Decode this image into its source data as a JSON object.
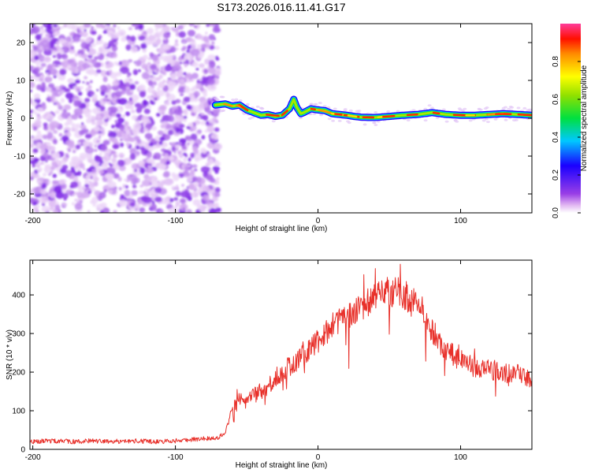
{
  "figure": {
    "title": "S173.2026.016.11.41.G17"
  },
  "chart_data": [
    {
      "type": "heatmap",
      "panel": "top",
      "title": "",
      "xlabel": "Height of straight line (km)",
      "ylabel": "Frequency (Hz)",
      "xlim": [
        -202,
        150
      ],
      "ylim": [
        -25,
        25
      ],
      "xticks": [
        -200,
        -100,
        0,
        100
      ],
      "yticks": [
        -20,
        -10,
        0,
        10,
        20
      ],
      "noise_region_x": [
        -202,
        -70
      ],
      "ridge": {
        "x": [
          -72,
          -65,
          -60,
          -55,
          -50,
          -45,
          -40,
          -35,
          -30,
          -25,
          -20,
          -17,
          -15,
          -12,
          -10,
          -5,
          0,
          5,
          10,
          15,
          20,
          25,
          30,
          35,
          40,
          50,
          60,
          70,
          80,
          90,
          100,
          110,
          120,
          130,
          140,
          150
        ],
        "frequency_hz": [
          3.5,
          3.8,
          3.2,
          3.5,
          2.2,
          1.5,
          0.8,
          1.0,
          0.5,
          0.8,
          2.5,
          5.0,
          3.0,
          1.2,
          1.5,
          2.5,
          2.2,
          2.0,
          1.2,
          1.0,
          0.8,
          0.5,
          0.3,
          0.2,
          0.2,
          0.5,
          0.8,
          1.0,
          1.5,
          1.0,
          0.8,
          0.8,
          1.0,
          1.2,
          1.0,
          0.8
        ]
      },
      "colorbar": {
        "label": "Normalized spectral amplitude",
        "range": [
          0.0,
          1.0
        ],
        "ticks": [
          "0.0",
          "0.2",
          "0.4",
          "0.6",
          "0.8"
        ],
        "tick_values": [
          0.0,
          0.2,
          0.4,
          0.6,
          0.8
        ]
      }
    },
    {
      "type": "line",
      "panel": "bottom",
      "title": "",
      "xlabel": "Height of straight line (km)",
      "ylabel": "SNR (10 * v/v)",
      "xlim": [
        -202,
        150
      ],
      "ylim": [
        0,
        490
      ],
      "xticks": [
        -200,
        -100,
        0,
        100
      ],
      "yticks": [
        0,
        100,
        200,
        300,
        400
      ],
      "color": "#e8302a",
      "series": [
        {
          "name": "SNR",
          "x": [
            -202,
            -190,
            -180,
            -170,
            -160,
            -150,
            -140,
            -130,
            -120,
            -110,
            -100,
            -90,
            -80,
            -70,
            -65,
            -60,
            -55,
            -50,
            -45,
            -40,
            -35,
            -30,
            -25,
            -20,
            -15,
            -10,
            -5,
            0,
            5,
            10,
            15,
            20,
            25,
            30,
            35,
            40,
            45,
            50,
            55,
            60,
            65,
            70,
            75,
            80,
            85,
            90,
            95,
            100,
            105,
            110,
            115,
            120,
            125,
            130,
            135,
            140,
            145,
            150
          ],
          "values": [
            20,
            22,
            21,
            20,
            22,
            20,
            21,
            22,
            21,
            20,
            22,
            25,
            28,
            30,
            45,
            100,
            130,
            120,
            140,
            150,
            165,
            185,
            200,
            215,
            225,
            245,
            260,
            280,
            300,
            320,
            330,
            340,
            355,
            370,
            380,
            390,
            400,
            410,
            405,
            400,
            390,
            380,
            345,
            310,
            280,
            260,
            245,
            230,
            225,
            210,
            210,
            205,
            205,
            200,
            195,
            200,
            190,
            180
          ]
        }
      ]
    }
  ]
}
